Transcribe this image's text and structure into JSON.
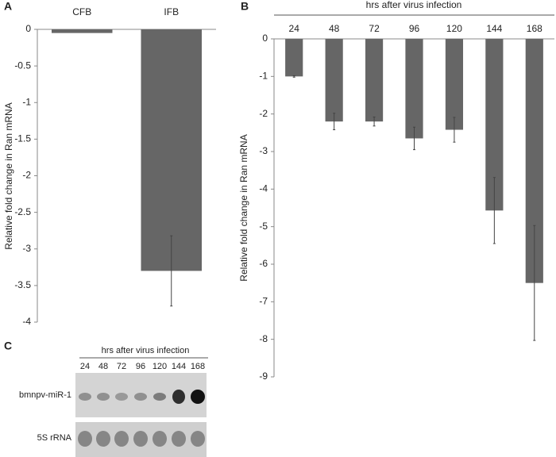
{
  "chart_data": [
    {
      "type": "bar",
      "panel": "A",
      "ylabel": "Relative fold change in Ran mRNA",
      "categories": [
        "CFB",
        "IFB"
      ],
      "series": [
        {
          "color": "#666666",
          "values": [
            -0.05,
            -3.3
          ],
          "errors": [
            null,
            0.48
          ]
        }
      ],
      "ylim": [
        -4,
        0
      ],
      "yticks": [
        0,
        -0.5,
        -1,
        -1.5,
        -2,
        -2.5,
        -3,
        -3.5,
        -4
      ]
    },
    {
      "type": "bar",
      "panel": "B",
      "xlabel": "hrs after virus infection",
      "ylabel": "Relative fold change in Ran mRNA",
      "categories": [
        "24",
        "48",
        "72",
        "96",
        "120",
        "144",
        "168"
      ],
      "series": [
        {
          "color": "#666666",
          "values": [
            -1.0,
            -2.2,
            -2.2,
            -2.65,
            -2.42,
            -4.57,
            -6.5
          ],
          "errors": [
            0.02,
            0.22,
            0.12,
            0.3,
            0.33,
            0.88,
            1.53
          ]
        }
      ],
      "ylim": [
        -9,
        0
      ],
      "yticks": [
        0,
        -1,
        -2,
        -3,
        -4,
        -5,
        -6,
        -7,
        -8,
        -9
      ]
    }
  ],
  "blot": {
    "panel": "C",
    "title": "hrs after virus infection",
    "lanes": [
      "24",
      "48",
      "72",
      "96",
      "120",
      "144",
      "168"
    ],
    "rows": [
      "bmnpv-miR-1",
      "5S rRNA"
    ]
  }
}
